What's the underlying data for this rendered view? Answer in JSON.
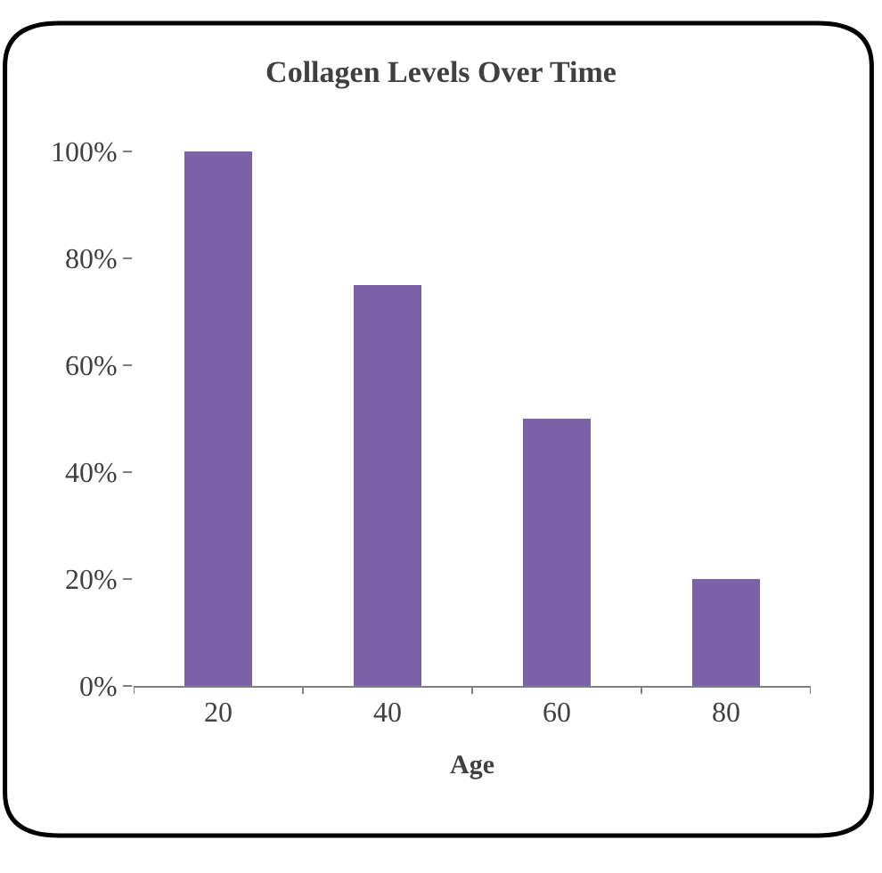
{
  "chart_data": {
    "type": "bar",
    "title": "Collagen Levels Over Time",
    "xlabel": "Age",
    "categories": [
      "20",
      "40",
      "60",
      "80"
    ],
    "values": [
      100,
      75,
      50,
      20
    ],
    "color": "#7b62a8",
    "ylim": [
      0,
      100
    ],
    "yticks": [
      {
        "value": 0,
        "label": "0%"
      },
      {
        "value": 20,
        "label": "20%"
      },
      {
        "value": 40,
        "label": "40%"
      },
      {
        "value": 60,
        "label": "60%"
      },
      {
        "value": 80,
        "label": "80%"
      },
      {
        "value": 100,
        "label": "100%"
      }
    ]
  }
}
